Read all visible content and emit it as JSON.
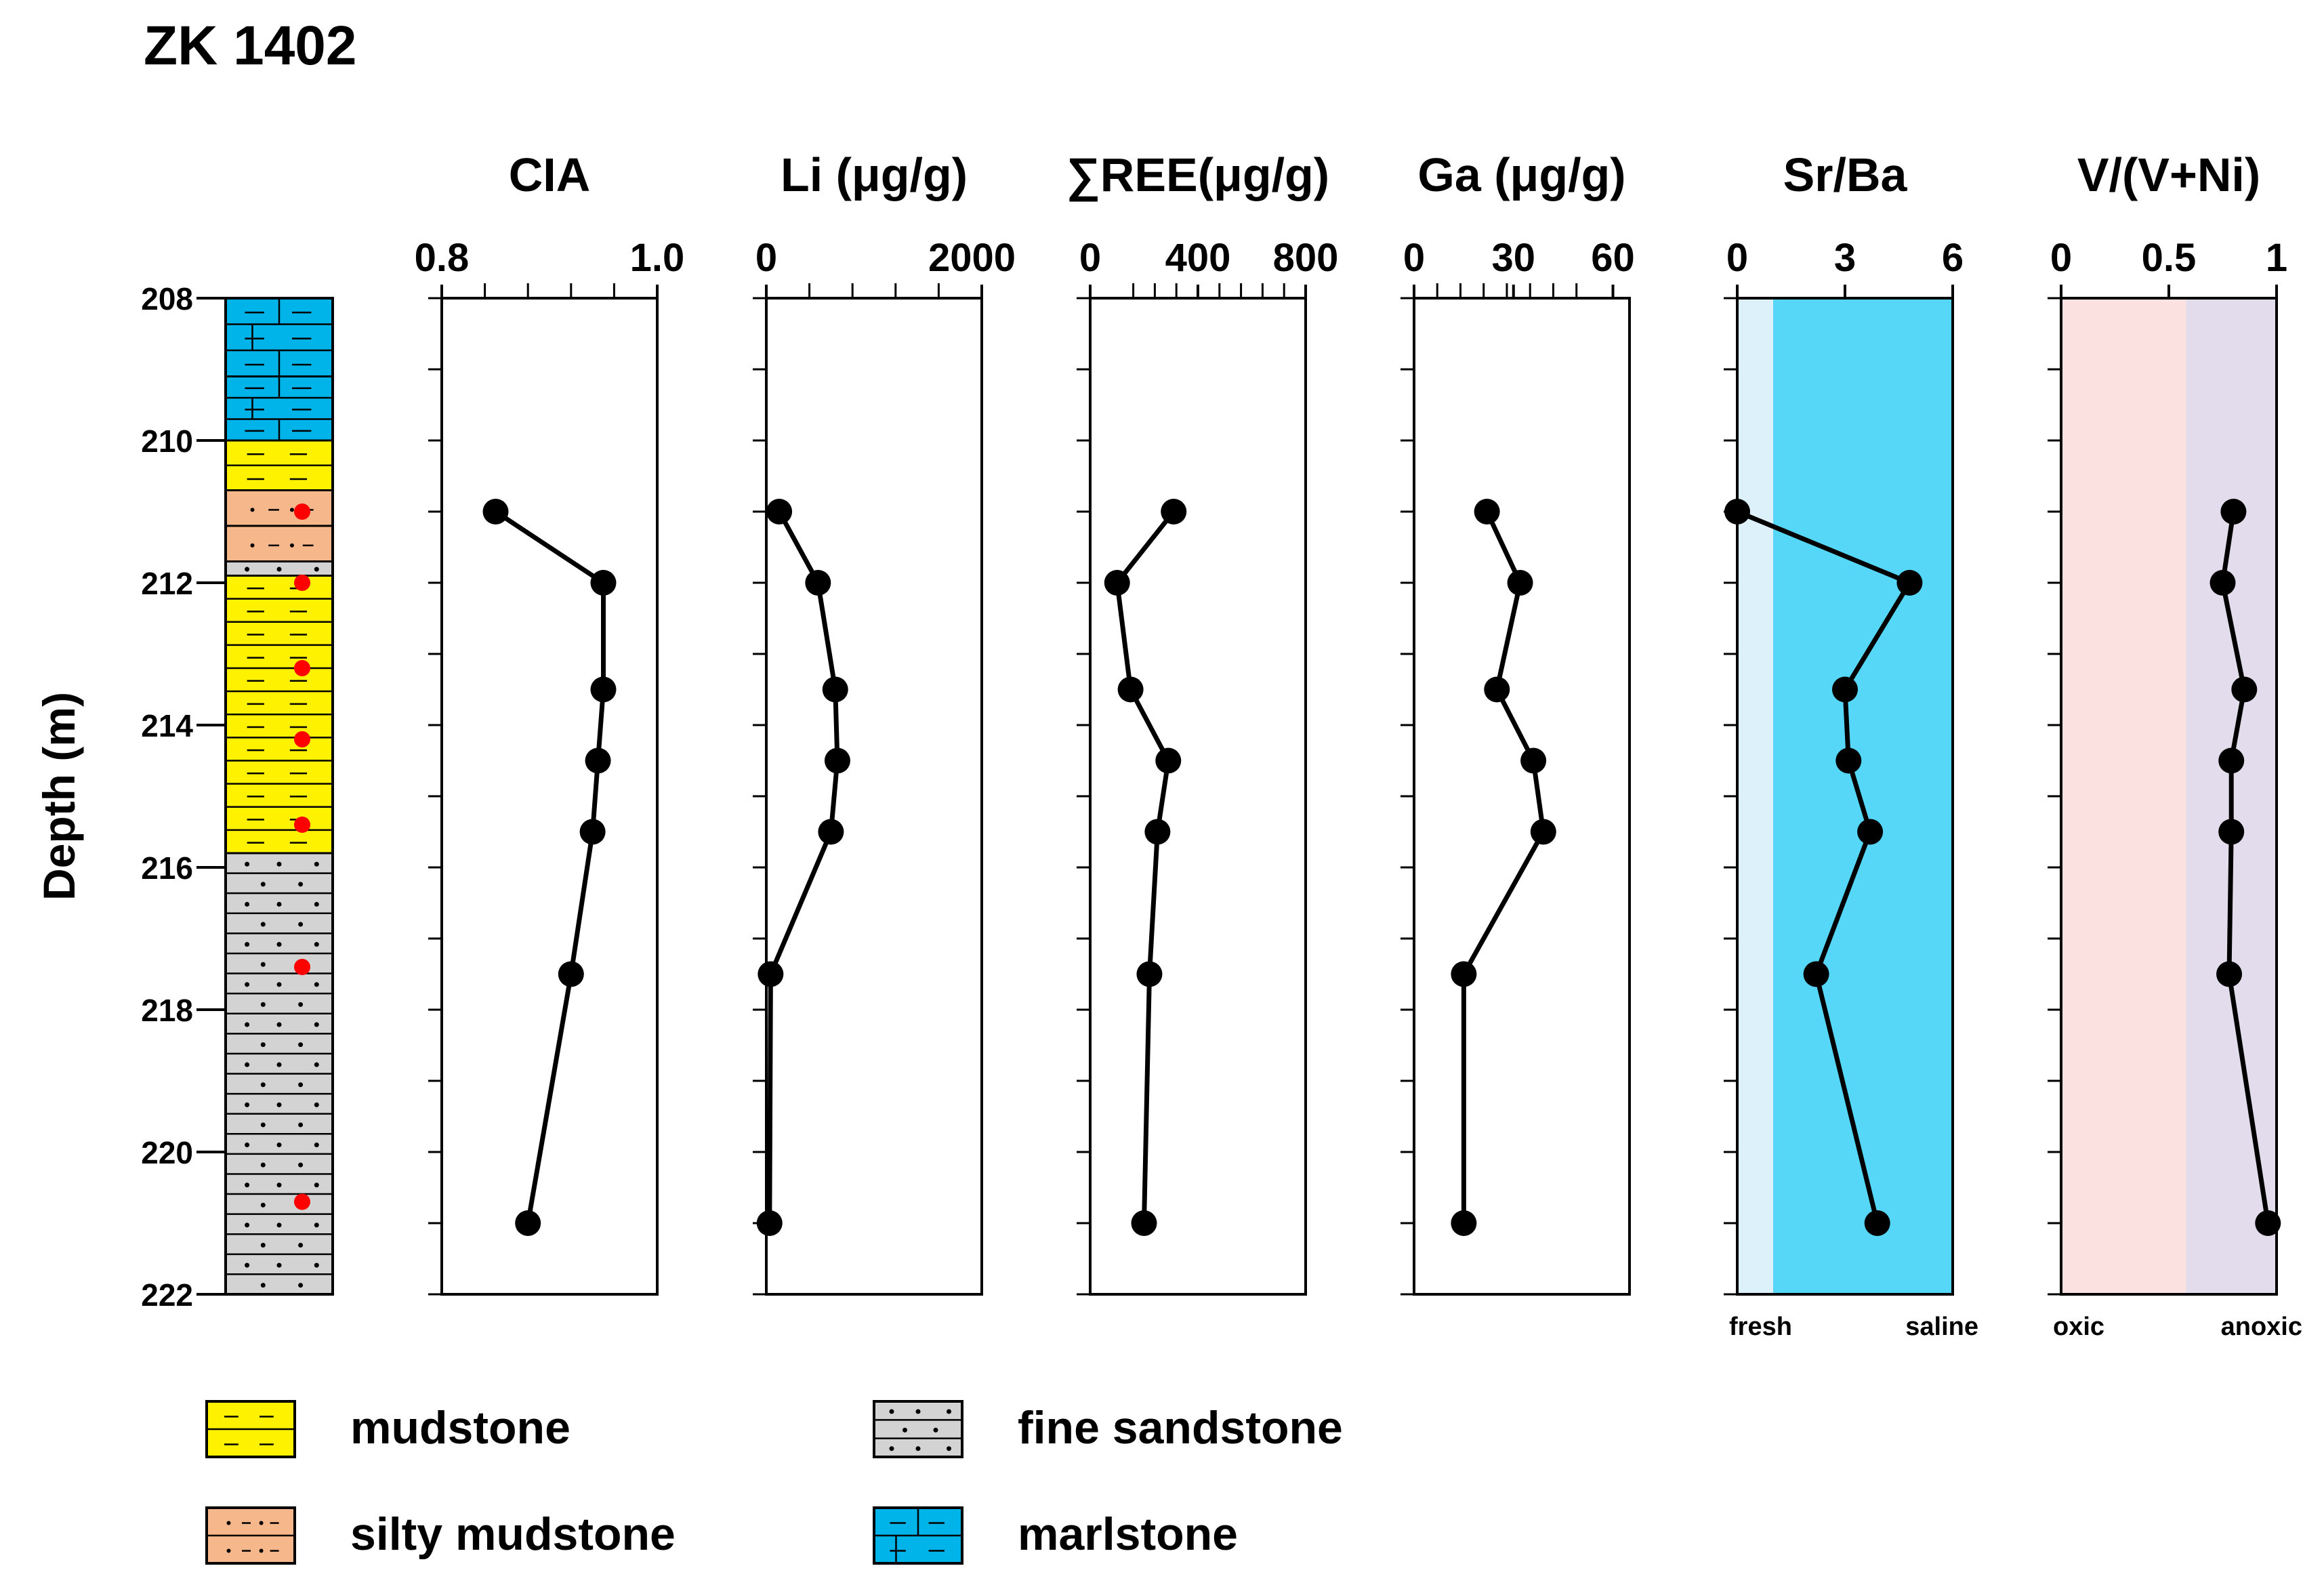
{
  "figure": {
    "title": "ZK 1402",
    "depth_axis": {
      "label": "Depth (m)",
      "min": 208,
      "max": 222,
      "ticks": [
        208,
        210,
        212,
        214,
        216,
        218,
        220,
        222
      ]
    },
    "lithology_column": [
      {
        "from": 208.0,
        "to": 209.1,
        "type": "marlstone"
      },
      {
        "from": 209.1,
        "to": 210.0,
        "type": "marlstone"
      },
      {
        "from": 210.0,
        "to": 210.7,
        "type": "mudstone"
      },
      {
        "from": 210.7,
        "to": 211.2,
        "type": "silty mudstone"
      },
      {
        "from": 211.2,
        "to": 211.7,
        "type": "silty mudstone"
      },
      {
        "from": 211.7,
        "to": 211.9,
        "type": "fine sandstone"
      },
      {
        "from": 211.9,
        "to": 215.8,
        "type": "mudstone"
      },
      {
        "from": 215.8,
        "to": 222.0,
        "type": "fine sandstone"
      }
    ],
    "sample_depths": [
      211.0,
      212.0,
      213.2,
      214.2,
      215.4,
      217.4,
      220.7
    ],
    "legend": [
      {
        "type": "mudstone",
        "label": "mudstone",
        "color": "#FFF200"
      },
      {
        "type": "silty mudstone",
        "label": "silty mudstone",
        "color": "#F6B78A"
      },
      {
        "type": "fine sandstone",
        "label": "fine sandstone",
        "color": "#D3D3D3"
      },
      {
        "type": "marlstone",
        "label": "marlstone",
        "color": "#00B4EA"
      }
    ],
    "sample_marker_color": "#FF0000"
  },
  "chart_data": [
    {
      "type": "line",
      "title": "CIA",
      "xlim": [
        0.8,
        1.0
      ],
      "tick_labels": [
        "0.8",
        "1.0"
      ],
      "tick_values": [
        0.8,
        1.0
      ],
      "minor_ticks": [
        0.84,
        0.88,
        0.92,
        0.96
      ],
      "depth": [
        211.0,
        212.0,
        213.5,
        214.5,
        215.5,
        217.5,
        221.0
      ],
      "values": [
        0.85,
        0.95,
        0.95,
        0.945,
        0.94,
        0.92,
        0.88
      ]
    },
    {
      "type": "line",
      "title": "Li (μg/g)",
      "xlim": [
        0,
        2000
      ],
      "tick_labels": [
        "0",
        "2000"
      ],
      "tick_values": [
        0,
        2000
      ],
      "minor_ticks": [
        400,
        800,
        1200,
        1600
      ],
      "depth": [
        211.0,
        212.0,
        213.5,
        214.5,
        215.5,
        217.5,
        221.0
      ],
      "values": [
        120,
        480,
        640,
        660,
        600,
        40,
        30
      ]
    },
    {
      "type": "line",
      "title": "∑REE(μg/g)",
      "xlim": [
        0,
        800
      ],
      "tick_labels": [
        "0",
        "400",
        "800"
      ],
      "tick_values": [
        0,
        400,
        800
      ],
      "minor_ticks": [
        160,
        240,
        320,
        480,
        560,
        640,
        720
      ],
      "depth": [
        211.0,
        212.0,
        213.5,
        214.5,
        215.5,
        217.5,
        221.0
      ],
      "values": [
        310,
        100,
        150,
        290,
        250,
        220,
        200
      ]
    },
    {
      "type": "line",
      "title": "Ga (μg/g)",
      "xlim": [
        0,
        65
      ],
      "tick_labels": [
        "0",
        "30",
        "60"
      ],
      "tick_values": [
        0,
        30,
        60
      ],
      "minor_ticks": [
        7,
        14,
        21,
        28,
        35,
        42,
        49
      ],
      "depth": [
        211.0,
        212.0,
        213.5,
        214.5,
        215.5,
        217.5,
        221.0
      ],
      "values": [
        22,
        32,
        25,
        36,
        39,
        15,
        15
      ]
    },
    {
      "type": "line",
      "title": "Sr/Ba",
      "xlim": [
        0,
        6
      ],
      "tick_labels": [
        "0",
        "3",
        "6"
      ],
      "tick_values": [
        0,
        3,
        6
      ],
      "minor_ticks": [],
      "depth": [
        211.0,
        212.0,
        213.5,
        214.5,
        215.5,
        217.5,
        221.0
      ],
      "values": [
        0.0,
        4.8,
        3.0,
        3.1,
        3.7,
        2.2,
        3.9
      ],
      "zones": [
        {
          "from": 0,
          "to": 1,
          "label": "fresh",
          "color": "#DCF1FA"
        },
        {
          "from": 1,
          "to": 6,
          "label": "saline",
          "color": "#56D7F7"
        }
      ]
    },
    {
      "type": "line",
      "title": "V/(V+Ni)",
      "xlim": [
        0,
        1
      ],
      "tick_labels": [
        "0",
        "0.5",
        "1"
      ],
      "tick_values": [
        0,
        0.5,
        1
      ],
      "minor_ticks": [],
      "depth": [
        211.0,
        212.0,
        213.5,
        214.5,
        215.5,
        217.5,
        221.0
      ],
      "values": [
        0.8,
        0.75,
        0.85,
        0.79,
        0.79,
        0.78,
        0.96
      ],
      "zones": [
        {
          "from": 0,
          "to": 0.58,
          "label": "oxic",
          "color": "#FBE1E0"
        },
        {
          "from": 0.58,
          "to": 1,
          "label": "anoxic",
          "color": "#E2DCEC"
        }
      ]
    }
  ]
}
